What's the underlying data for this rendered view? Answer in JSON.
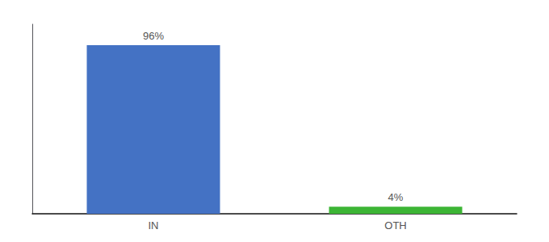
{
  "chart_data": {
    "type": "bar",
    "categories": [
      "IN",
      "OTH"
    ],
    "values": [
      96,
      4
    ],
    "value_labels": [
      "96%",
      "4%"
    ],
    "colors": [
      "#4472C4",
      "#3CB535"
    ],
    "ylim": [
      0,
      108
    ],
    "grid": false,
    "data_labels": true,
    "tick_labels": "x"
  }
}
